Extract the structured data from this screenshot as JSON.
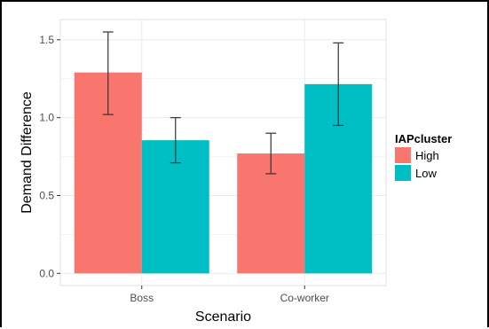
{
  "chart_data": {
    "type": "bar",
    "categories": [
      "Boss",
      "Co-worker"
    ],
    "series": [
      {
        "name": "High",
        "color": "#F8766D",
        "values": [
          1.29,
          0.77
        ],
        "error_low": [
          1.02,
          0.64
        ],
        "error_high": [
          1.55,
          0.9
        ]
      },
      {
        "name": "Low",
        "color": "#00BFC4",
        "values": [
          0.855,
          1.215
        ],
        "error_low": [
          0.71,
          0.95
        ],
        "error_high": [
          1.0,
          1.48
        ]
      }
    ],
    "title": "",
    "xlabel": "Scenario",
    "ylabel": "Demand Difference",
    "ylim": [
      -0.078,
      1.63
    ],
    "yticks": [
      0.0,
      0.5,
      1.0,
      1.5
    ],
    "ytick_labels": [
      "0.0",
      "0.5",
      "1.0",
      "1.5"
    ],
    "legend_title": "IAPcluster",
    "legend_position": "right",
    "grid": true
  }
}
